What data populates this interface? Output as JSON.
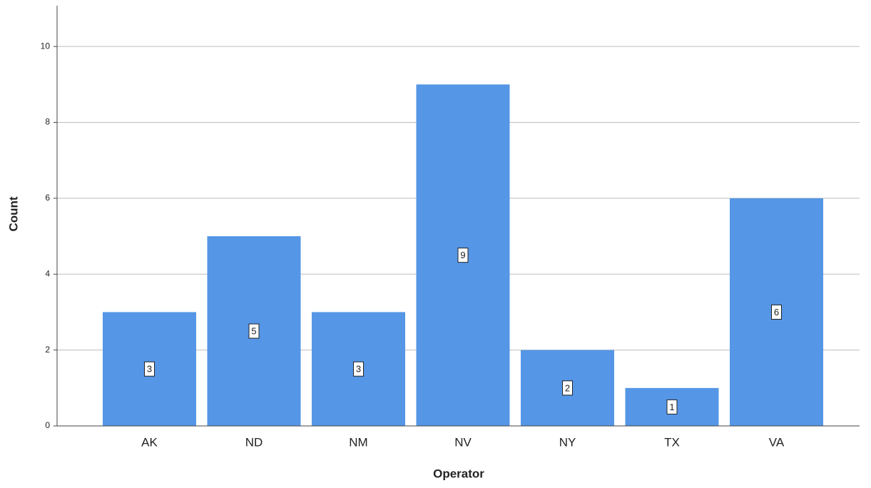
{
  "chart_data": {
    "type": "bar",
    "categories": [
      "AK",
      "ND",
      "NM",
      "NV",
      "NY",
      "TX",
      "VA"
    ],
    "values": [
      3,
      5,
      3,
      9,
      2,
      1,
      6
    ],
    "color": "#5596e6",
    "xlabel": "Operator",
    "ylabel": "Count",
    "ylim": [
      0,
      11
    ],
    "yticks": [
      0,
      2,
      4,
      6,
      8,
      10
    ],
    "grid": true
  }
}
